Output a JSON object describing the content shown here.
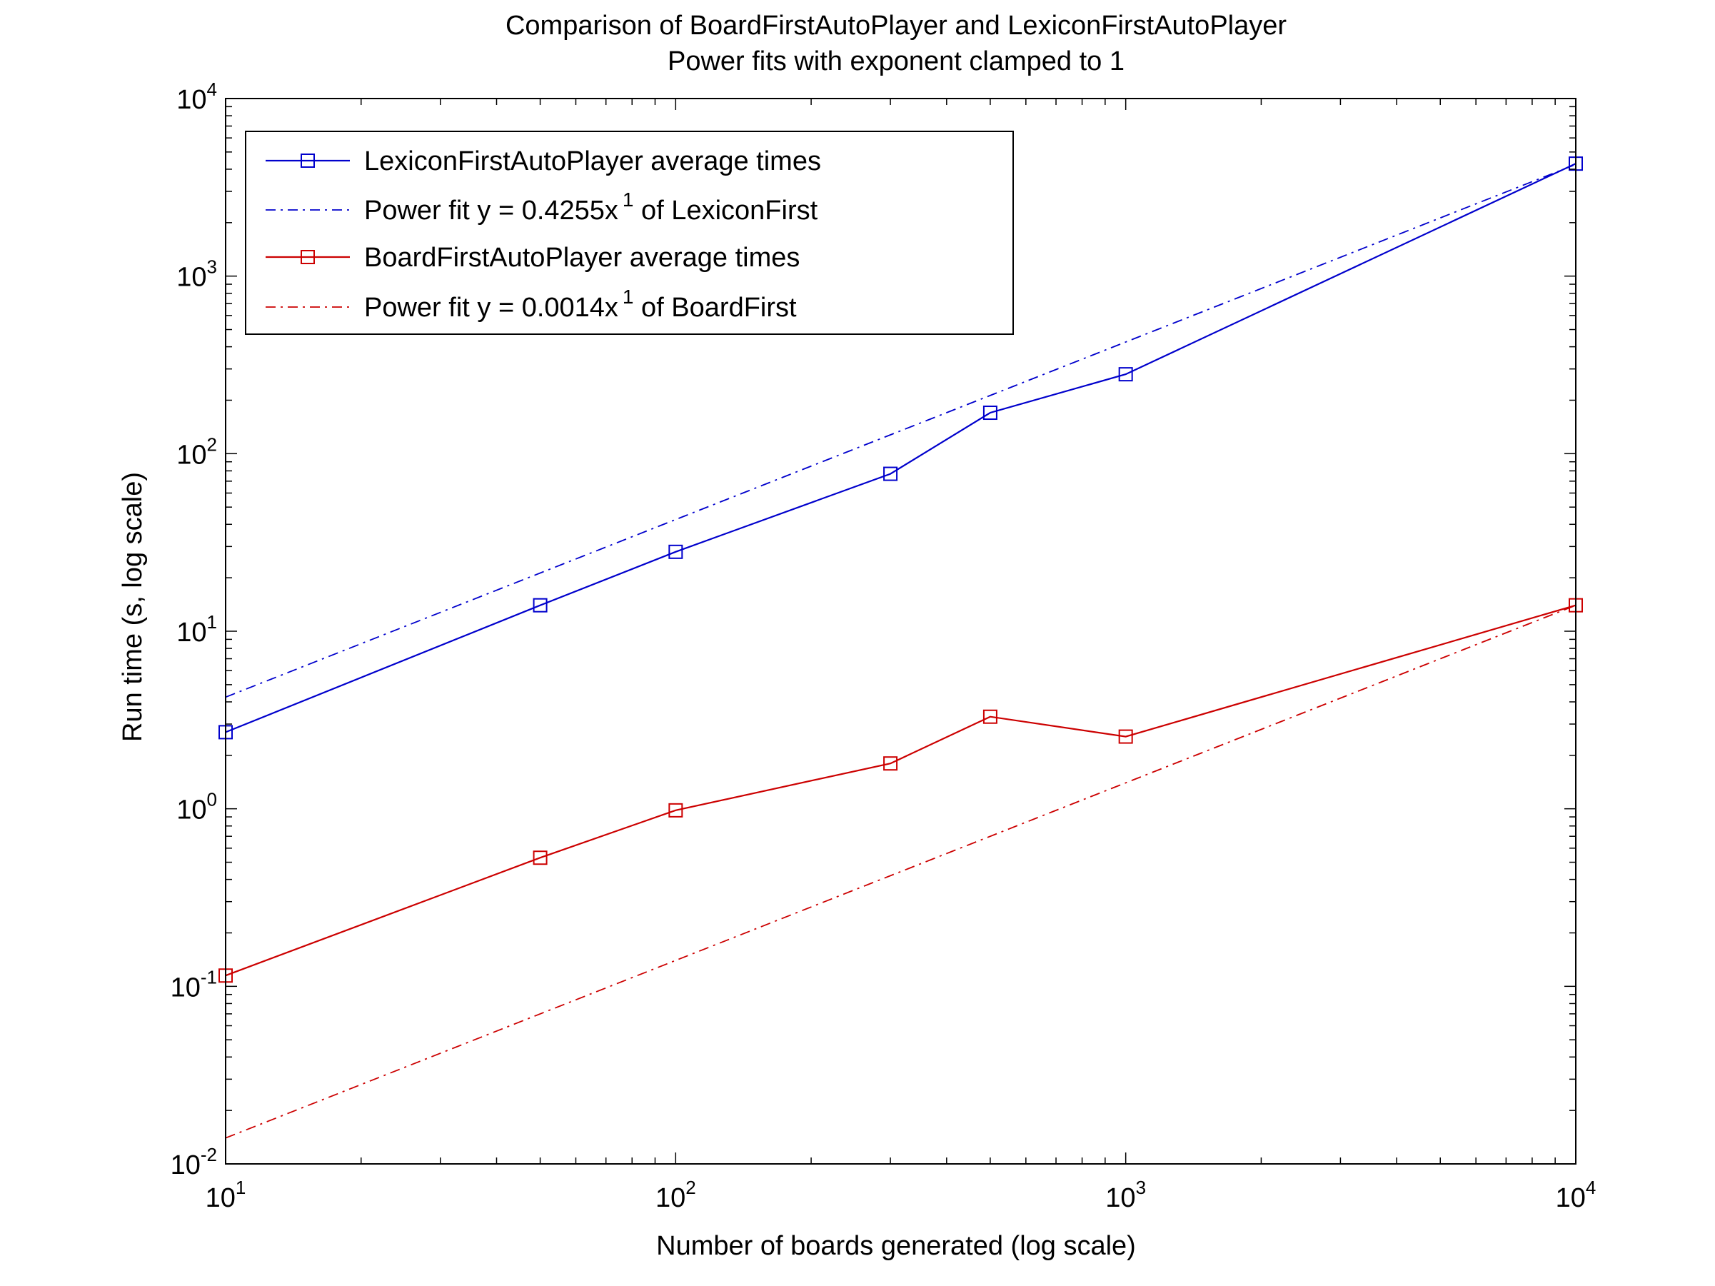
{
  "chart_data": {
    "type": "line",
    "title": "Comparison of BoardFirstAutoPlayer and LexiconFirstAutoPlayer",
    "subtitle": "Power fits with exponent clamped to 1",
    "xlabel": "Number of boards generated (log scale)",
    "ylabel": "Run time (s, log scale)",
    "xscale": "log",
    "yscale": "log",
    "xlim": [
      10,
      10000
    ],
    "ylim": [
      0.01,
      10000
    ],
    "grid": false,
    "legend_position": "top-left",
    "x_ticks": [
      {
        "value": 10,
        "base": "10",
        "exp": "1"
      },
      {
        "value": 100,
        "base": "10",
        "exp": "2"
      },
      {
        "value": 1000,
        "base": "10",
        "exp": "3"
      },
      {
        "value": 10000,
        "base": "10",
        "exp": "4"
      }
    ],
    "y_ticks": [
      {
        "value": 0.01,
        "base": "10",
        "exp": "-2"
      },
      {
        "value": 0.1,
        "base": "10",
        "exp": "-1"
      },
      {
        "value": 1,
        "base": "10",
        "exp": "0"
      },
      {
        "value": 10,
        "base": "10",
        "exp": "1"
      },
      {
        "value": 100,
        "base": "10",
        "exp": "2"
      },
      {
        "value": 1000,
        "base": "10",
        "exp": "3"
      },
      {
        "value": 10000,
        "base": "10",
        "exp": "4"
      }
    ],
    "series": [
      {
        "name": "LexiconFirstAutoPlayer average times",
        "style": "solid",
        "marker": "square",
        "color": "#0000cc",
        "x": [
          10,
          50,
          100,
          300,
          500,
          1000,
          10000
        ],
        "y": [
          2.7,
          14,
          28,
          77,
          170,
          280,
          4300
        ]
      },
      {
        "legend_prefix": "Power fit y = 0.4255x",
        "legend_exp": "1",
        "legend_suffix": " of LexiconFirst",
        "style": "dashdot",
        "marker": "none",
        "color": "#0000cc",
        "x": [
          10,
          10000
        ],
        "y": [
          4.255,
          4255
        ]
      },
      {
        "name": "BoardFirstAutoPlayer average times",
        "style": "solid",
        "marker": "square",
        "color": "#cc0000",
        "x": [
          10,
          50,
          100,
          300,
          500,
          1000,
          10000
        ],
        "y": [
          0.115,
          0.53,
          0.98,
          1.8,
          3.3,
          2.55,
          14
        ]
      },
      {
        "legend_prefix": "Power fit y = 0.0014x",
        "legend_exp": "1",
        "legend_suffix": " of BoardFirst",
        "style": "dashdot",
        "marker": "none",
        "color": "#cc0000",
        "x": [
          10,
          10000
        ],
        "y": [
          0.014,
          14
        ]
      }
    ]
  }
}
